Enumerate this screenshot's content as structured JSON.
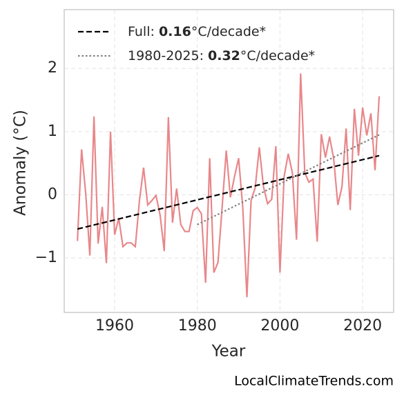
{
  "chart_data": {
    "type": "line",
    "xlabel": "Year",
    "ylabel": "Anomaly (°C)",
    "source": "LocalClimateTrends.com",
    "xlim": [
      1947.8,
      2027.5
    ],
    "xticks": [
      1960,
      1980,
      2000,
      2020
    ],
    "ylim": [
      -1.86,
      2.93
    ],
    "yticks": [
      {
        "value": -1,
        "label": "−1"
      },
      0,
      1,
      2
    ],
    "grid": true,
    "legend": "upper left",
    "series": [
      {
        "color": "#e8878a",
        "style": "solid",
        "x": [
          1951,
          1952,
          1953,
          1954,
          1955,
          1956,
          1957,
          1958,
          1959,
          1960,
          1961,
          1962,
          1963,
          1964,
          1965,
          1966,
          1967,
          1968,
          1969,
          1970,
          1971,
          1972,
          1973,
          1974,
          1975,
          1976,
          1977,
          1978,
          1979,
          1980,
          1981,
          1982,
          1983,
          1984,
          1985,
          1986,
          1987,
          1988,
          1989,
          1990,
          1991,
          1992,
          1993,
          1994,
          1995,
          1996,
          1997,
          1998,
          1999,
          2000,
          2001,
          2002,
          2003,
          2004,
          2005,
          2006,
          2007,
          2008,
          2009,
          2010,
          2011,
          2012,
          2013,
          2014,
          2015,
          2016,
          2017,
          2018,
          2019,
          2020,
          2021,
          2022,
          2023,
          2024
        ],
        "values": [
          -0.73,
          0.72,
          0.02,
          -0.96,
          1.24,
          -0.77,
          -0.19,
          -1.08,
          1.0,
          -0.63,
          -0.37,
          -0.82,
          -0.76,
          -0.76,
          -0.82,
          -0.09,
          0.43,
          -0.16,
          -0.09,
          -0.01,
          -0.32,
          -0.89,
          1.23,
          -0.44,
          0.1,
          -0.47,
          -0.58,
          -0.58,
          -0.25,
          -0.2,
          -0.3,
          -1.39,
          0.58,
          -1.23,
          -1.07,
          -0.2,
          0.7,
          -0.04,
          0.29,
          0.58,
          -0.2,
          -1.62,
          -0.09,
          0.11,
          0.75,
          0.13,
          -0.14,
          -0.07,
          0.77,
          -1.23,
          0.29,
          0.65,
          0.35,
          -0.71,
          1.92,
          0.35,
          0.2,
          0.25,
          -0.74,
          0.96,
          0.59,
          0.92,
          0.57,
          -0.16,
          0.13,
          1.05,
          -0.24,
          1.36,
          0.62,
          1.38,
          0.94,
          1.29,
          0.39,
          1.56
        ]
      },
      {
        "name": "Full: 0.16°C/decade*",
        "color": "#000000",
        "style": "dashed",
        "x": [
          1951,
          2024
        ],
        "values": [
          -0.54,
          0.62
        ]
      },
      {
        "name": "1980-2025: 0.32°C/decade*",
        "color": "#808080",
        "style": "dotted",
        "x": [
          1980,
          2024
        ],
        "values": [
          -0.47,
          0.95
        ]
      }
    ]
  }
}
